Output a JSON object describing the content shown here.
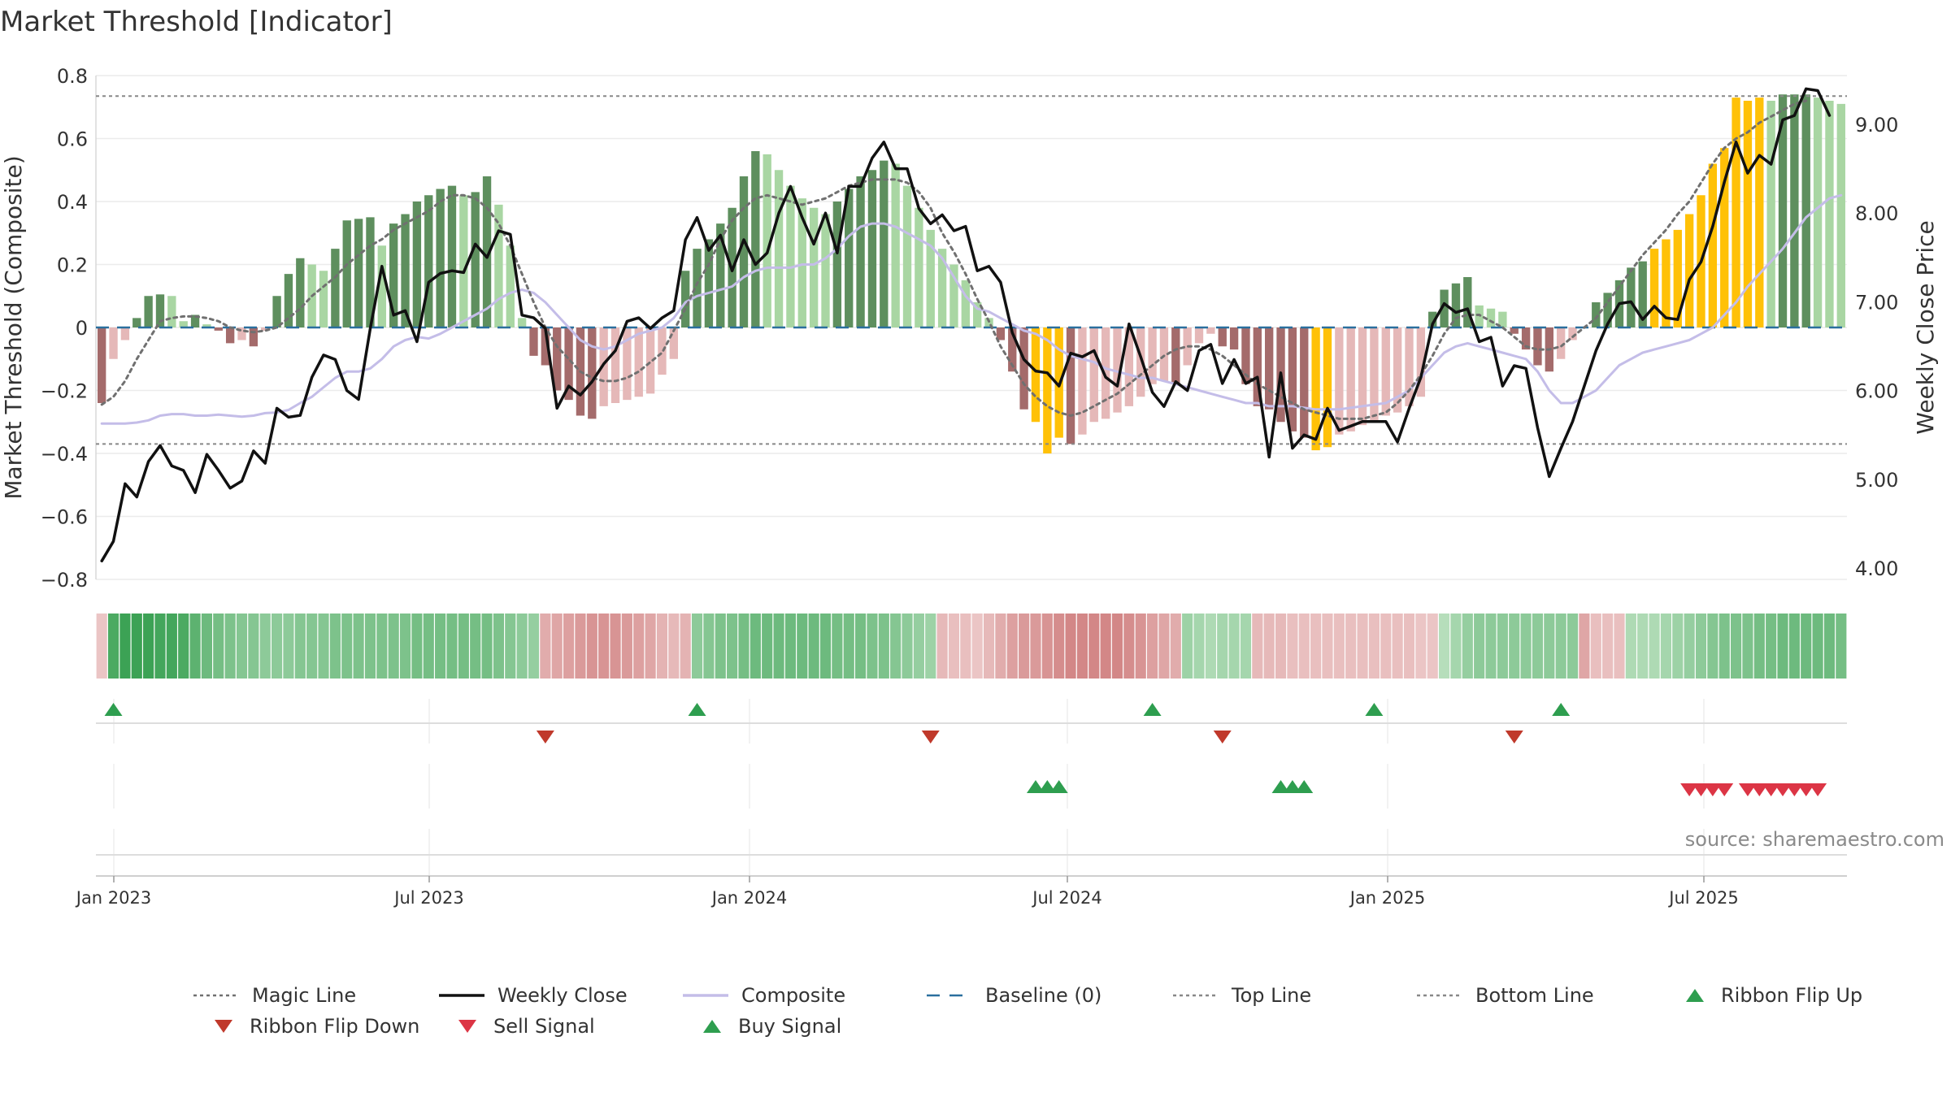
{
  "title": "Market Threshold [Indicator]",
  "source": "source: sharemaestro.com",
  "colors": {
    "pos_dark": "#5e8f5e",
    "pos_light": "#a9d6a3",
    "neg_dark": "#a46b6b",
    "neg_light": "#e5b8b8",
    "highlight": "#ffc107",
    "weekly_close": "#111111",
    "composite": "#c4bde8",
    "magic": "#707070",
    "baseline": "#2a6f9e",
    "threshold": "#888888",
    "buy": "#2e9e4f",
    "sell": "#dc3545"
  },
  "chart_data": {
    "type": "bar",
    "ylabel": "Market Threshold (Composite)",
    "y2label": "Weekly Close Price",
    "ylim": [
      -0.8,
      0.8
    ],
    "y2lim": [
      4.0,
      9.0
    ],
    "yticks": [
      "0.8",
      "0.6",
      "0.4",
      "0.2",
      "0",
      "−0.2",
      "−0.4",
      "−0.6",
      "−0.8"
    ],
    "y2ticks": [
      "9.00",
      "8.00",
      "7.00",
      "6.00",
      "5.00",
      "4.00"
    ],
    "xticks": [
      "Jan 2023",
      "Jul 2023",
      "Jan 2024",
      "Jul 2024",
      "Jan 2025",
      "Jul 2025"
    ],
    "top_line": 0.735,
    "bottom_line": -0.37,
    "composite_histogram": [
      -0.24,
      -0.1,
      -0.04,
      0.03,
      0.1,
      0.105,
      0.1,
      0.02,
      0.04,
      0.01,
      -0.01,
      -0.05,
      -0.04,
      -0.06,
      -0.01,
      0.1,
      0.17,
      0.22,
      0.2,
      0.18,
      0.25,
      0.34,
      0.345,
      0.35,
      0.26,
      0.33,
      0.36,
      0.4,
      0.42,
      0.44,
      0.45,
      0.42,
      0.43,
      0.48,
      0.39,
      0.26,
      0.03,
      -0.09,
      -0.12,
      -0.2,
      -0.23,
      -0.28,
      -0.29,
      -0.25,
      -0.24,
      -0.23,
      -0.22,
      -0.21,
      -0.15,
      -0.1,
      0.18,
      0.25,
      0.28,
      0.33,
      0.38,
      0.48,
      0.56,
      0.55,
      0.5,
      0.45,
      0.41,
      0.38,
      0.36,
      0.4,
      0.44,
      0.48,
      0.5,
      0.53,
      0.52,
      0.45,
      0.38,
      0.31,
      0.25,
      0.2,
      0.15,
      0.08,
      0.03,
      -0.04,
      -0.14,
      -0.26,
      -0.3,
      -0.4,
      -0.35,
      -0.37,
      -0.34,
      -0.3,
      -0.29,
      -0.27,
      -0.25,
      -0.22,
      -0.18,
      -0.17,
      -0.18,
      -0.12,
      -0.05,
      -0.02,
      -0.06,
      -0.07,
      -0.18,
      -0.25,
      -0.26,
      -0.3,
      -0.33,
      -0.35,
      -0.39,
      -0.38,
      -0.34,
      -0.33,
      -0.31,
      -0.3,
      -0.28,
      -0.27,
      -0.25,
      -0.22,
      0.05,
      0.12,
      0.14,
      0.16,
      0.07,
      0.06,
      0.05,
      -0.02,
      -0.07,
      -0.12,
      -0.14,
      -0.1,
      -0.04,
      0.0,
      0.08,
      0.11,
      0.15,
      0.19,
      0.21,
      0.25,
      0.28,
      0.31,
      0.36,
      0.42,
      0.52,
      0.57,
      0.73,
      0.72,
      0.73,
      0.72,
      0.74,
      0.74,
      0.74,
      0.73,
      0.72,
      0.71
    ],
    "highlighted_bars": [
      80,
      81,
      82,
      104,
      105,
      133,
      134,
      135,
      136,
      137,
      138,
      139,
      140,
      141,
      142
    ],
    "weekly_close": [
      4.08,
      4.3,
      4.95,
      4.8,
      5.2,
      5.38,
      5.15,
      5.1,
      4.85,
      5.28,
      5.1,
      4.9,
      4.98,
      5.32,
      5.18,
      5.8,
      5.7,
      5.72,
      6.15,
      6.4,
      6.35,
      6.0,
      5.9,
      6.7,
      7.4,
      6.85,
      6.9,
      6.55,
      7.22,
      7.32,
      7.35,
      7.33,
      7.65,
      7.5,
      7.8,
      7.76,
      6.85,
      6.82,
      6.7,
      5.8,
      6.05,
      5.95,
      6.1,
      6.3,
      6.45,
      6.78,
      6.82,
      6.7,
      6.82,
      6.9,
      7.7,
      7.95,
      7.58,
      7.75,
      7.35,
      7.7,
      7.42,
      7.55,
      8.0,
      8.3,
      7.95,
      7.65,
      8.0,
      7.55,
      8.3,
      8.3,
      8.62,
      8.8,
      8.5,
      8.5,
      8.05,
      7.88,
      7.98,
      7.8,
      7.85,
      7.35,
      7.4,
      7.22,
      6.65,
      6.35,
      6.22,
      6.2,
      6.05,
      6.42,
      6.38,
      6.45,
      6.15,
      6.05,
      6.75,
      6.38,
      5.98,
      5.82,
      6.1,
      6.0,
      6.45,
      6.52,
      6.08,
      6.35,
      6.08,
      6.15,
      5.25,
      6.2,
      5.35,
      5.5,
      5.45,
      5.8,
      5.55,
      5.6,
      5.65,
      5.65,
      5.65,
      5.42,
      5.8,
      6.15,
      6.75,
      6.98,
      6.88,
      6.92,
      6.55,
      6.6,
      6.05,
      6.28,
      6.25,
      5.58,
      5.03,
      5.35,
      5.65,
      6.05,
      6.45,
      6.75,
      6.98,
      7.0,
      6.8,
      6.95,
      6.82,
      6.8,
      7.25,
      7.45,
      7.85,
      8.35,
      8.8,
      8.45,
      8.65,
      8.55,
      9.05,
      9.1,
      9.4,
      9.38,
      9.1
    ],
    "composite": [
      -0.305,
      -0.305,
      -0.305,
      -0.302,
      -0.295,
      -0.28,
      -0.275,
      -0.275,
      -0.28,
      -0.28,
      -0.277,
      -0.28,
      -0.283,
      -0.28,
      -0.272,
      -0.27,
      -0.262,
      -0.24,
      -0.22,
      -0.19,
      -0.16,
      -0.14,
      -0.14,
      -0.13,
      -0.1,
      -0.06,
      -0.04,
      -0.03,
      -0.035,
      -0.02,
      0.0,
      0.02,
      0.04,
      0.06,
      0.09,
      0.11,
      0.12,
      0.11,
      0.08,
      0.04,
      0.0,
      -0.04,
      -0.06,
      -0.07,
      -0.06,
      -0.04,
      -0.02,
      -0.01,
      0.0,
      0.03,
      0.08,
      0.1,
      0.11,
      0.12,
      0.13,
      0.16,
      0.18,
      0.19,
      0.19,
      0.19,
      0.2,
      0.2,
      0.22,
      0.25,
      0.29,
      0.32,
      0.33,
      0.33,
      0.32,
      0.3,
      0.28,
      0.26,
      0.22,
      0.16,
      0.1,
      0.06,
      0.05,
      0.03,
      0.01,
      -0.01,
      -0.02,
      -0.04,
      -0.07,
      -0.09,
      -0.1,
      -0.11,
      -0.13,
      -0.14,
      -0.15,
      -0.16,
      -0.16,
      -0.17,
      -0.18,
      -0.19,
      -0.2,
      -0.21,
      -0.22,
      -0.23,
      -0.24,
      -0.24,
      -0.25,
      -0.25,
      -0.25,
      -0.255,
      -0.26,
      -0.26,
      -0.26,
      -0.255,
      -0.25,
      -0.245,
      -0.24,
      -0.22,
      -0.2,
      -0.16,
      -0.12,
      -0.08,
      -0.06,
      -0.05,
      -0.06,
      -0.07,
      -0.08,
      -0.09,
      -0.1,
      -0.14,
      -0.2,
      -0.24,
      -0.24,
      -0.22,
      -0.2,
      -0.16,
      -0.12,
      -0.1,
      -0.08,
      -0.07,
      -0.06,
      -0.05,
      -0.04,
      -0.02,
      0.0,
      0.04,
      0.08,
      0.13,
      0.17,
      0.21,
      0.25,
      0.3,
      0.35,
      0.38,
      0.41,
      0.42
    ],
    "magic_line": [
      -0.245,
      -0.22,
      -0.17,
      -0.1,
      -0.04,
      0.02,
      0.03,
      0.035,
      0.035,
      0.03,
      0.02,
      0.0,
      -0.01,
      -0.015,
      -0.01,
      0.0,
      0.03,
      0.06,
      0.1,
      0.13,
      0.16,
      0.2,
      0.23,
      0.26,
      0.28,
      0.31,
      0.33,
      0.35,
      0.37,
      0.4,
      0.42,
      0.42,
      0.41,
      0.38,
      0.33,
      0.26,
      0.17,
      0.08,
      0.0,
      -0.06,
      -0.1,
      -0.14,
      -0.16,
      -0.17,
      -0.17,
      -0.16,
      -0.14,
      -0.11,
      -0.08,
      -0.01,
      0.06,
      0.14,
      0.2,
      0.28,
      0.34,
      0.38,
      0.41,
      0.42,
      0.41,
      0.4,
      0.39,
      0.4,
      0.41,
      0.43,
      0.45,
      0.46,
      0.47,
      0.47,
      0.47,
      0.46,
      0.43,
      0.38,
      0.3,
      0.24,
      0.17,
      0.09,
      0.02,
      -0.06,
      -0.12,
      -0.18,
      -0.22,
      -0.25,
      -0.27,
      -0.28,
      -0.27,
      -0.25,
      -0.23,
      -0.21,
      -0.18,
      -0.15,
      -0.12,
      -0.09,
      -0.07,
      -0.06,
      -0.06,
      -0.07,
      -0.09,
      -0.12,
      -0.15,
      -0.18,
      -0.2,
      -0.22,
      -0.24,
      -0.26,
      -0.27,
      -0.28,
      -0.29,
      -0.29,
      -0.29,
      -0.28,
      -0.27,
      -0.24,
      -0.2,
      -0.15,
      -0.09,
      -0.02,
      0.03,
      0.04,
      0.04,
      0.02,
      0.0,
      -0.03,
      -0.06,
      -0.07,
      -0.07,
      -0.06,
      -0.03,
      0.0,
      0.03,
      0.08,
      0.13,
      0.18,
      0.23,
      0.27,
      0.31,
      0.36,
      0.4,
      0.46,
      0.52,
      0.57,
      0.6,
      0.62,
      0.65,
      0.67,
      0.69,
      0.71,
      0.72
    ],
    "ribbon_shades": [
      0.2,
      0.85,
      0.95,
      0.95,
      0.95,
      0.9,
      0.9,
      0.85,
      0.75,
      0.65,
      0.6,
      0.55,
      0.5,
      0.5,
      0.45,
      0.45,
      0.45,
      0.5,
      0.5,
      0.5,
      0.55,
      0.55,
      0.55,
      0.55,
      0.55,
      0.55,
      0.55,
      0.6,
      0.6,
      0.6,
      0.6,
      0.6,
      0.6,
      0.6,
      0.55,
      0.5,
      0.45,
      0.4,
      0.4,
      0.45,
      0.5,
      0.55,
      0.6,
      0.6,
      0.6,
      0.55,
      0.5,
      0.45,
      0.35,
      0.3,
      0.35,
      0.45,
      0.5,
      0.55,
      0.55,
      0.6,
      0.65,
      0.65,
      0.65,
      0.65,
      0.65,
      0.65,
      0.65,
      0.6,
      0.6,
      0.6,
      0.55,
      0.55,
      0.5,
      0.45,
      0.4,
      0.35,
      0.3,
      0.25,
      0.25,
      0.2,
      0.3,
      0.4,
      0.5,
      0.55,
      0.55,
      0.6,
      0.65,
      0.7,
      0.7,
      0.7,
      0.7,
      0.7,
      0.65,
      0.6,
      0.5,
      0.45,
      0.4,
      0.35,
      0.3,
      0.25,
      0.3,
      0.3,
      0.3,
      0.3,
      0.3,
      0.3,
      0.25,
      0.25,
      0.25,
      0.25,
      0.25,
      0.25,
      0.25,
      0.25,
      0.25,
      0.25,
      0.25,
      0.2,
      0.2,
      0.2,
      0.3,
      0.4,
      0.45,
      0.45,
      0.45,
      0.45,
      0.45,
      0.45,
      0.45,
      0.45,
      0.45,
      0.45,
      0.25,
      0.25,
      0.25,
      0.25,
      0.25,
      0.25,
      0.3,
      0.35,
      0.4,
      0.45,
      0.5,
      0.55,
      0.55,
      0.55,
      0.6,
      0.6,
      0.65,
      0.65,
      0.65,
      0.65,
      0.65,
      0.6,
      0.55,
      0.5,
      0.45,
      0.4,
      0.4
    ],
    "ribbon_signs": [
      -1,
      1,
      1,
      1,
      1,
      1,
      1,
      1,
      1,
      1,
      1,
      1,
      1,
      1,
      1,
      1,
      1,
      1,
      1,
      1,
      1,
      1,
      1,
      1,
      1,
      1,
      1,
      1,
      1,
      1,
      1,
      1,
      1,
      1,
      1,
      1,
      1,
      1,
      -1,
      -1,
      -1,
      -1,
      -1,
      -1,
      -1,
      -1,
      -1,
      -1,
      -1,
      -1,
      -1,
      1,
      1,
      1,
      1,
      1,
      1,
      1,
      1,
      1,
      1,
      1,
      1,
      1,
      1,
      1,
      1,
      1,
      1,
      1,
      1,
      1,
      -1,
      -1,
      -1,
      -1,
      -1,
      -1,
      -1,
      -1,
      -1,
      -1,
      -1,
      -1,
      -1,
      -1,
      -1,
      -1,
      -1,
      -1,
      -1,
      -1,
      -1,
      1,
      1,
      1,
      1,
      1,
      1,
      -1,
      -1,
      -1,
      -1,
      -1,
      -1,
      -1,
      -1,
      -1,
      -1,
      -1,
      -1,
      -1,
      -1,
      -1,
      -1,
      1,
      1,
      1,
      1,
      1,
      1,
      1,
      1,
      1,
      1,
      1,
      1,
      -1,
      -1,
      -1,
      -1,
      1,
      1,
      1,
      1,
      1,
      1,
      1,
      1,
      1,
      1,
      1,
      1,
      1,
      1,
      1,
      1,
      1,
      1,
      1,
      1,
      1,
      1,
      1,
      1,
      1
    ],
    "ribbon_flip_up": [
      1,
      51,
      90,
      109,
      125
    ],
    "ribbon_flip_down": [
      38,
      71,
      96,
      121
    ],
    "buy_signals": [
      80,
      81,
      82,
      101,
      102,
      103
    ],
    "sell_signals": [
      136,
      137,
      138,
      139,
      141,
      142,
      143,
      144,
      145,
      146,
      147
    ]
  },
  "legend": [
    {
      "label": "Magic Line",
      "kind": "dotted",
      "color": "#707070"
    },
    {
      "label": "Weekly Close",
      "kind": "solid",
      "color": "#111111"
    },
    {
      "label": "Composite",
      "kind": "solid",
      "color": "#c4bde8"
    },
    {
      "label": "Baseline (0)",
      "kind": "dashed",
      "color": "#2a6f9e"
    },
    {
      "label": "Top Line",
      "kind": "dotted",
      "color": "#888888"
    },
    {
      "label": "Bottom Line",
      "kind": "dotted",
      "color": "#888888"
    },
    {
      "label": "Ribbon Flip Up",
      "kind": "up",
      "color": "#2e9e4f"
    },
    {
      "label": "Ribbon Flip Down",
      "kind": "down",
      "color": "#c0392b"
    },
    {
      "label": "Sell Signal",
      "kind": "down",
      "color": "#dc3545"
    },
    {
      "label": "Buy Signal",
      "kind": "up",
      "color": "#2e9e4f"
    }
  ]
}
